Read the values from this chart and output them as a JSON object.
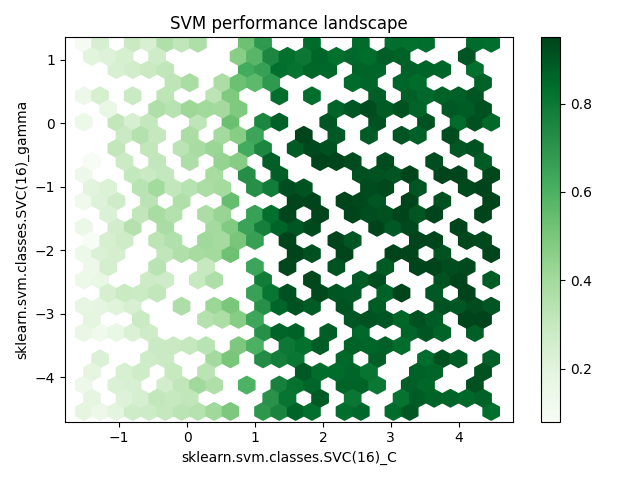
{
  "title": "SVM performance landscape",
  "xlabel": "sklearn.svm.classes.SVC(16)_C",
  "ylabel": "sklearn.svm.classes.SVC(16)_gamma",
  "xlim": [
    -1.8,
    4.8
  ],
  "ylim": [
    -4.7,
    1.35
  ],
  "cmap": "Greens",
  "colorbar_ticks": [
    0.2,
    0.4,
    0.6,
    0.8
  ],
  "gridsize": 25,
  "vmin": 0.08,
  "vmax": 0.95,
  "seed": 0
}
